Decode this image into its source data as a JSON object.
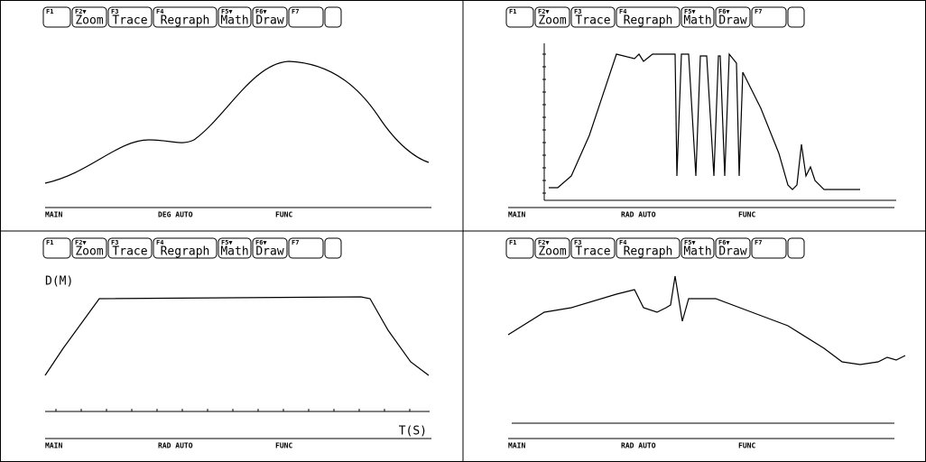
{
  "toolbar": [
    {
      "key": "F1"
    },
    {
      "key": "F2▼",
      "label": "Zoom"
    },
    {
      "key": "F3",
      "label": "Trace"
    },
    {
      "key": "F4",
      "label": "Regraph"
    },
    {
      "key": "F5▼",
      "label": "Math"
    },
    {
      "key": "F6▼",
      "label": "Draw"
    },
    {
      "key": "F7"
    }
  ],
  "panels": [
    {
      "status": {
        "mode": "MAIN",
        "angle": "DEG AUTO",
        "graph": "FUNC"
      }
    },
    {
      "status": {
        "mode": "MAIN",
        "angle": "RAD AUTO",
        "graph": "FUNC"
      }
    },
    {
      "y_label": "D(M)",
      "x_label": "T(S)",
      "status": {
        "mode": "MAIN",
        "angle": "RAD AUTO",
        "graph": "FUNC"
      }
    },
    {
      "status": {
        "mode": "MAIN",
        "angle": "RAD AUTO",
        "graph": "FUNC"
      }
    }
  ]
}
